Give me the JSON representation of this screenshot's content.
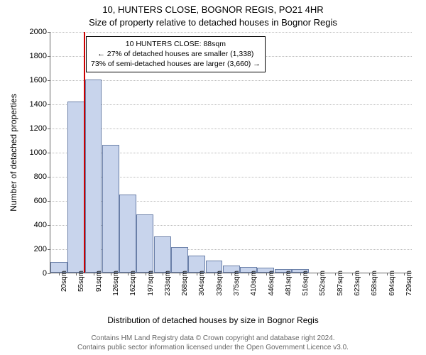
{
  "chart": {
    "type": "histogram",
    "title_line1": "10, HUNTERS CLOSE, BOGNOR REGIS, PO21 4HR",
    "title_line2": "Size of property relative to detached houses in Bognor Regis",
    "ylabel": "Number of detached properties",
    "xlabel": "Distribution of detached houses by size in Bognor Regis",
    "ylim": [
      0,
      2000
    ],
    "ytick_step": 200,
    "yticks": [
      0,
      200,
      400,
      600,
      800,
      1000,
      1200,
      1400,
      1600,
      1800,
      2000
    ],
    "x_categories": [
      "20sqm",
      "55sqm",
      "91sqm",
      "126sqm",
      "162sqm",
      "197sqm",
      "233sqm",
      "268sqm",
      "304sqm",
      "339sqm",
      "375sqm",
      "410sqm",
      "446sqm",
      "481sqm",
      "516sqm",
      "552sqm",
      "587sqm",
      "623sqm",
      "658sqm",
      "694sqm",
      "729sqm"
    ],
    "values": [
      90,
      1420,
      1600,
      1060,
      650,
      480,
      300,
      210,
      140,
      100,
      60,
      50,
      40,
      30,
      30,
      0,
      0,
      0,
      0,
      0,
      0
    ],
    "bar_fill": "#c8d4ec",
    "bar_stroke": "#6a7fa8",
    "background": "#ffffff",
    "grid_color": "#bbbbbb",
    "axis_color": "#666666",
    "reference_line": {
      "x_index_between": [
        1,
        2
      ],
      "color": "#cc0000"
    },
    "annotation": {
      "lines": [
        "10 HUNTERS CLOSE: 88sqm",
        "← 27% of detached houses are smaller (1,338)",
        "73% of semi-detached houses are larger (3,660) →"
      ],
      "border_color": "#000000",
      "bg_color": "#ffffff",
      "fontsize": 10.5
    },
    "title_fontsize": 13,
    "label_fontsize": 12,
    "tick_fontsize": 11
  },
  "footer": {
    "line1": "Contains HM Land Registry data © Crown copyright and database right 2024.",
    "line2": "Contains public sector information licensed under the Open Government Licence v3.0."
  }
}
